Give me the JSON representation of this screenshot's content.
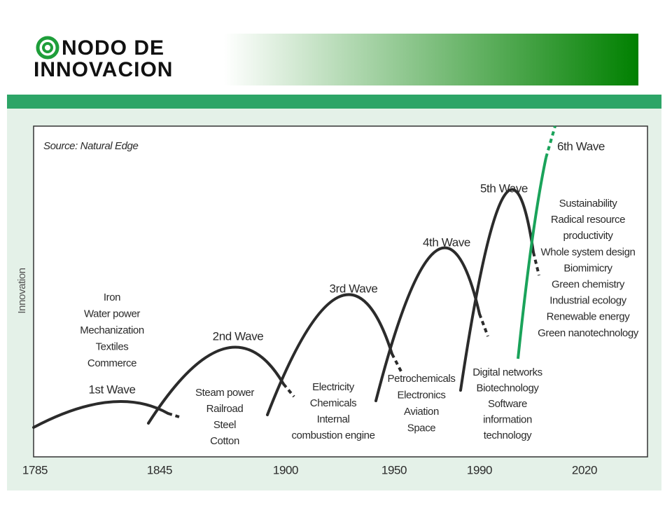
{
  "logo": {
    "line1": "NODO DE",
    "line2": "INNOVACION"
  },
  "source": "Source: Natural Edge",
  "y_axis_label": "Innovation",
  "years": [
    "1785",
    "1845",
    "1900",
    "1950",
    "1990",
    "2020"
  ],
  "waves": [
    {
      "name": "1st Wave",
      "items": [
        "Iron",
        "Water power",
        "Mechanization",
        "Textiles",
        "Commerce"
      ]
    },
    {
      "name": "2nd Wave",
      "items": [
        "Steam power",
        "Railroad",
        "Steel",
        "Cotton"
      ]
    },
    {
      "name": "3rd Wave",
      "items": [
        "Electricity",
        "Chemicals",
        "Internal",
        "combustion engine"
      ]
    },
    {
      "name": "4th Wave",
      "items": [
        "Petrochemicals",
        "Electronics",
        "Aviation",
        "Space"
      ]
    },
    {
      "name": "5th Wave",
      "items": [
        "Digital networks",
        "Biotechnology",
        "Software",
        "information",
        "technology"
      ]
    },
    {
      "name": "6th Wave",
      "items": [
        "Sustainability",
        "Radical resource",
        "productivity",
        "Whole system design",
        "Biomimicry",
        "Green chemistry",
        "Industrial ecology",
        "Renewable energy",
        "Green nanotechnology"
      ]
    }
  ]
}
